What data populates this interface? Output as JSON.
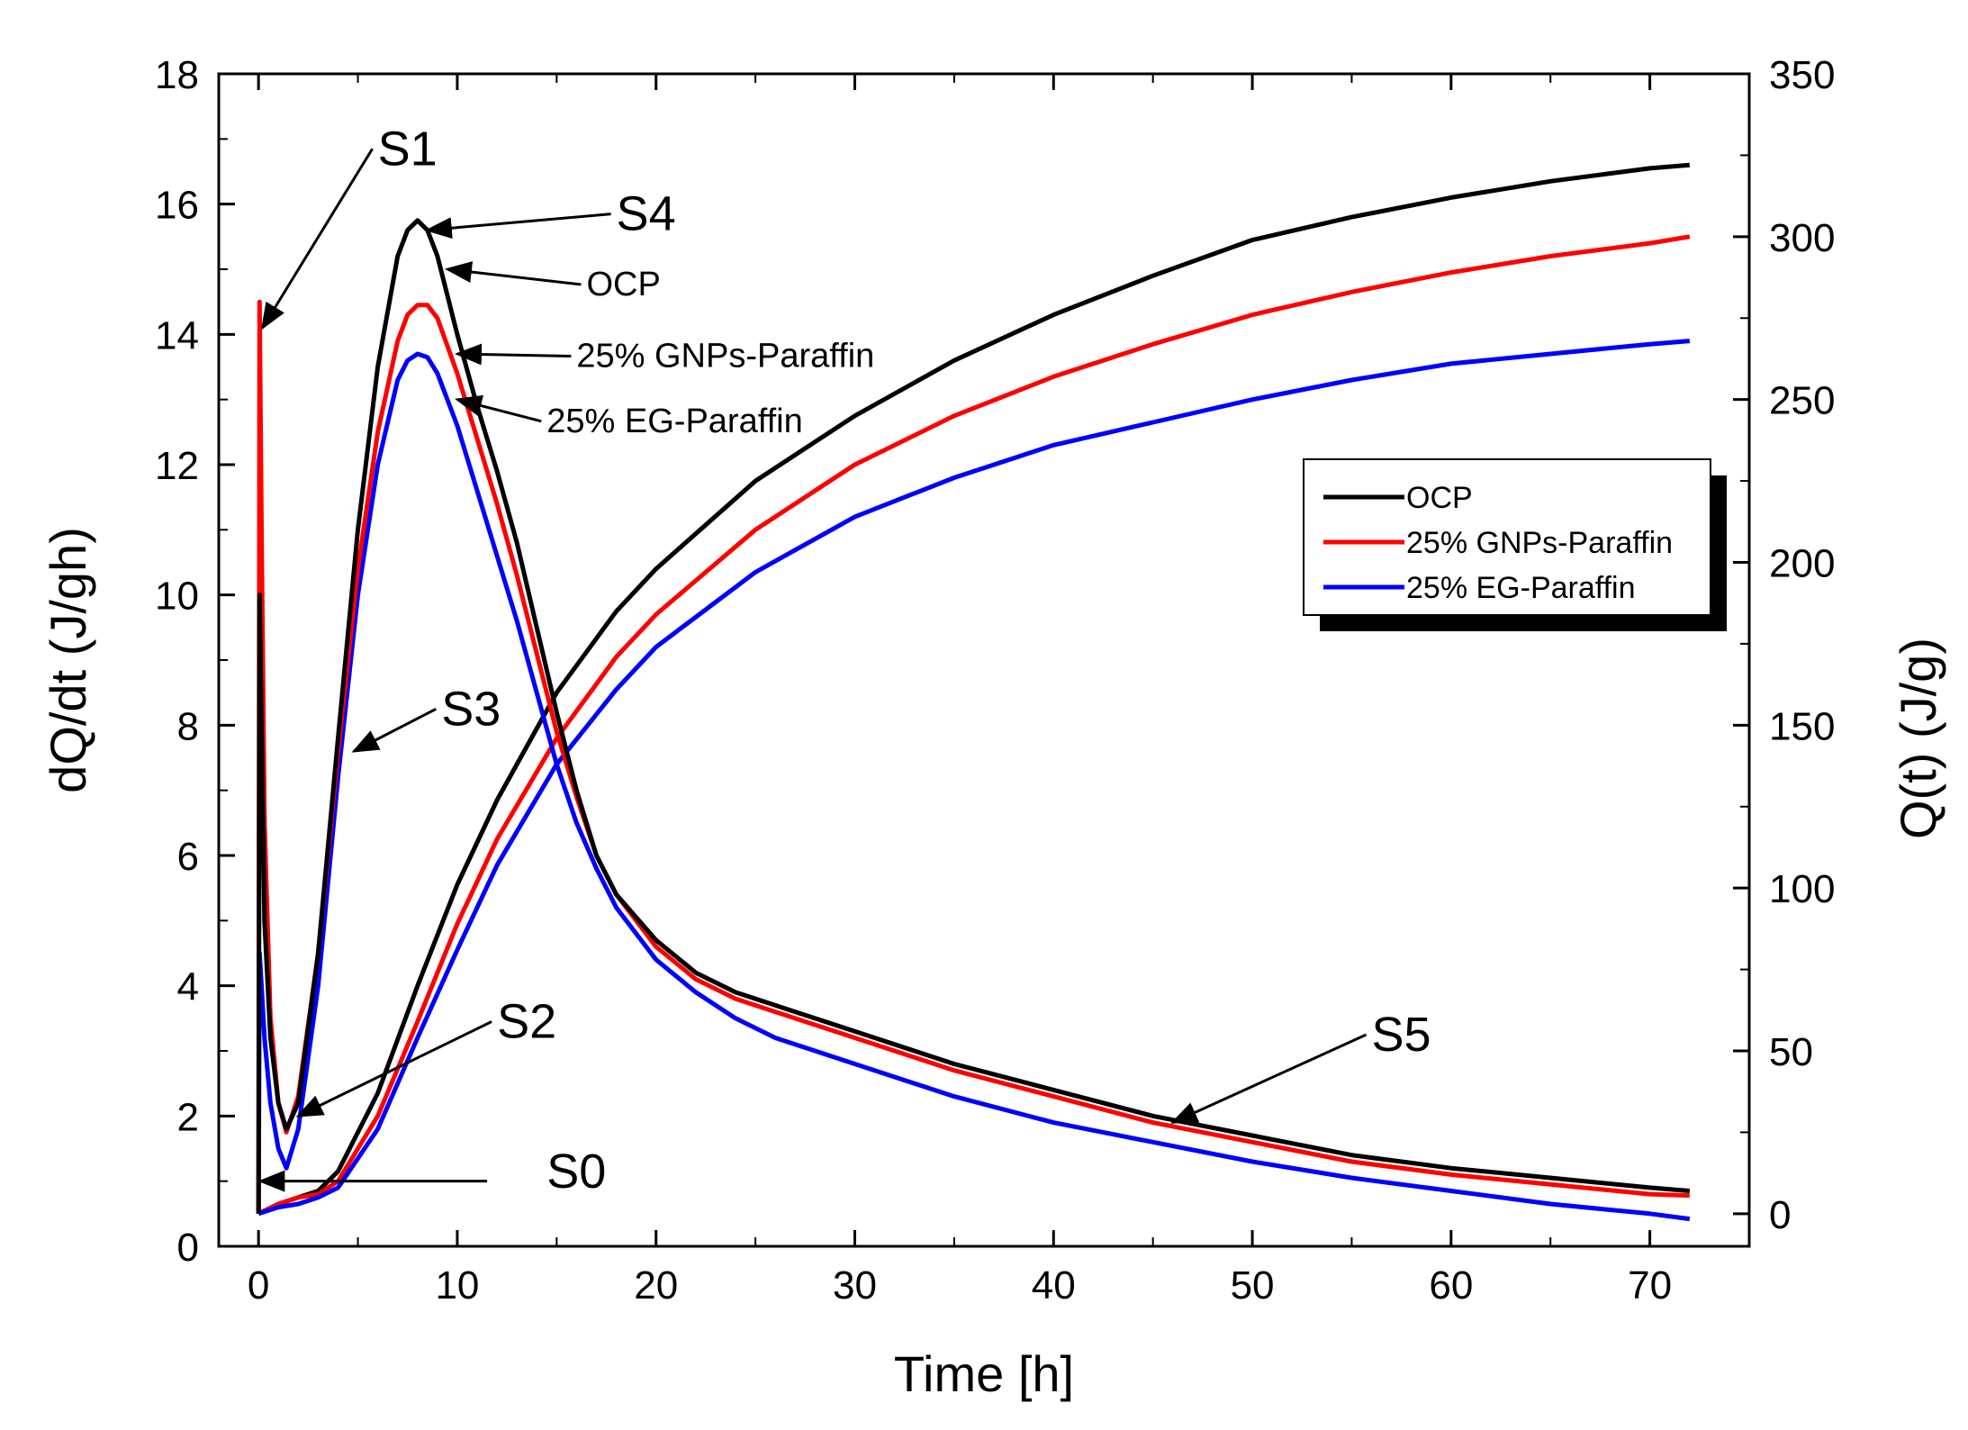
{
  "chart_data": {
    "type": "line",
    "xlabel": "Time [h]",
    "ylabel_left": "dQ/dt (J/gh)",
    "ylabel_right": "Q(t) (J/g)",
    "xlim": [
      -2,
      75
    ],
    "ylim_left": [
      0,
      18
    ],
    "ylim_right": [
      -10,
      350
    ],
    "x_ticks": [
      0,
      10,
      20,
      30,
      40,
      50,
      60,
      70
    ],
    "y_left_ticks": [
      0,
      2,
      4,
      6,
      8,
      10,
      12,
      14,
      16,
      18
    ],
    "y_right_ticks": [
      0,
      50,
      100,
      150,
      200,
      250,
      300,
      350
    ],
    "grid": false,
    "legend_position": "center-right",
    "legend": [
      "OCP",
      "25% GNPs-Paraffin",
      "25% EG-Paraffin"
    ],
    "colors": {
      "OCP": "#000000",
      "GNPs": "#ff0000",
      "EG": "#0000ff"
    },
    "series_rate": [
      {
        "name": "OCP",
        "axis": "left",
        "x": [
          0,
          0.05,
          0.15,
          0.3,
          0.6,
          1.0,
          1.4,
          2,
          3,
          4,
          5,
          6,
          7,
          7.5,
          8,
          8.5,
          9,
          10,
          11,
          12,
          13,
          14,
          15,
          16,
          17,
          18,
          20,
          22,
          24,
          26,
          30,
          35,
          40,
          45,
          50,
          55,
          60,
          65,
          70,
          72
        ],
        "y": [
          0.5,
          10,
          8,
          5,
          3.2,
          2.2,
          1.8,
          2.2,
          4.5,
          7.8,
          11.0,
          13.5,
          15.2,
          15.6,
          15.75,
          15.6,
          15.2,
          14.0,
          12.9,
          11.9,
          10.8,
          9.5,
          8.2,
          7.0,
          6.0,
          5.4,
          4.7,
          4.2,
          3.9,
          3.7,
          3.3,
          2.8,
          2.4,
          2.0,
          1.7,
          1.4,
          1.2,
          1.05,
          0.9,
          0.85
        ]
      },
      {
        "name": "25% GNPs-Paraffin",
        "axis": "left",
        "x": [
          0,
          0.05,
          0.15,
          0.3,
          0.6,
          1.0,
          1.4,
          2,
          3,
          4,
          5,
          6,
          7,
          7.5,
          8,
          8.5,
          9,
          10,
          11,
          12,
          13,
          14,
          15,
          16,
          17,
          18,
          20,
          22,
          24,
          26,
          30,
          35,
          40,
          45,
          50,
          55,
          60,
          65,
          70,
          72
        ],
        "y": [
          0.5,
          14.5,
          11,
          6.5,
          3.5,
          2.2,
          1.75,
          2.3,
          4.5,
          7.6,
          10.4,
          12.5,
          13.9,
          14.3,
          14.45,
          14.45,
          14.25,
          13.4,
          12.4,
          11.4,
          10.3,
          9.1,
          7.9,
          6.9,
          6.0,
          5.4,
          4.6,
          4.1,
          3.8,
          3.6,
          3.2,
          2.7,
          2.3,
          1.9,
          1.6,
          1.3,
          1.1,
          0.95,
          0.8,
          0.78
        ]
      },
      {
        "name": "25% EG-Paraffin",
        "axis": "left",
        "x": [
          0,
          0.05,
          0.15,
          0.3,
          0.6,
          1.0,
          1.4,
          2,
          3,
          4,
          5,
          6,
          7,
          7.5,
          8,
          8.5,
          9,
          10,
          11,
          12,
          13,
          14,
          15,
          16,
          17,
          18,
          20,
          22,
          24,
          26,
          30,
          35,
          40,
          45,
          50,
          55,
          60,
          65,
          70,
          72
        ],
        "y": [
          0.5,
          4.5,
          4.0,
          3.2,
          2.2,
          1.5,
          1.2,
          1.8,
          4.0,
          7.2,
          10.0,
          12.0,
          13.3,
          13.6,
          13.7,
          13.65,
          13.4,
          12.6,
          11.6,
          10.6,
          9.6,
          8.5,
          7.4,
          6.5,
          5.8,
          5.2,
          4.4,
          3.9,
          3.5,
          3.2,
          2.8,
          2.3,
          1.9,
          1.6,
          1.3,
          1.05,
          0.85,
          0.65,
          0.5,
          0.42
        ]
      }
    ],
    "series_cumulative": [
      {
        "name": "OCP",
        "axis": "right",
        "x": [
          0,
          1,
          2,
          3,
          4,
          6,
          8,
          10,
          12,
          15,
          18,
          20,
          25,
          30,
          35,
          40,
          45,
          50,
          55,
          60,
          65,
          70,
          72
        ],
        "y": [
          0,
          3,
          5,
          7,
          13,
          37,
          70,
          101,
          127,
          160,
          185,
          198,
          225,
          245,
          262,
          276,
          288,
          299,
          306,
          312,
          317,
          321,
          322
        ]
      },
      {
        "name": "25% GNPs-Paraffin",
        "axis": "right",
        "x": [
          0,
          1,
          2,
          3,
          4,
          6,
          8,
          10,
          12,
          15,
          18,
          20,
          25,
          30,
          35,
          40,
          45,
          50,
          55,
          60,
          65,
          70,
          72
        ],
        "y": [
          0,
          3,
          5,
          6,
          10,
          30,
          59,
          89,
          115,
          146,
          171,
          184,
          210,
          230,
          245,
          257,
          267,
          276,
          283,
          289,
          294,
          298,
          300
        ]
      },
      {
        "name": "25% EG-Paraffin",
        "axis": "right",
        "x": [
          0,
          1,
          2,
          3,
          4,
          6,
          8,
          10,
          12,
          15,
          18,
          20,
          25,
          30,
          35,
          40,
          45,
          50,
          55,
          60,
          65,
          70,
          72
        ],
        "y": [
          0,
          2,
          3,
          5,
          8,
          26,
          54,
          81,
          107,
          138,
          161,
          174,
          197,
          214,
          226,
          236,
          243,
          250,
          256,
          261,
          264,
          267,
          268
        ]
      }
    ],
    "annotations": [
      {
        "text": "S1",
        "x": 6,
        "y": 16.6,
        "arrow_to": [
          0.2,
          14.1
        ]
      },
      {
        "text": "S4",
        "x": 18,
        "y": 15.6,
        "arrow_to": [
          8.5,
          15.6
        ]
      },
      {
        "text": "OCP",
        "x": 16.5,
        "y": 14.6,
        "arrow_to": [
          9.5,
          15.0
        ],
        "small": true
      },
      {
        "text": "25% GNPs-Paraffin",
        "x": 16,
        "y": 13.5,
        "arrow_to": [
          10,
          13.7
        ],
        "small": true
      },
      {
        "text": "25% EG-Paraffin",
        "x": 14.5,
        "y": 12.5,
        "arrow_to": [
          10,
          13.0
        ],
        "small": true
      },
      {
        "text": "S3",
        "x": 9.2,
        "y": 8.0,
        "arrow_to": [
          4.8,
          7.6
        ]
      },
      {
        "text": "S2",
        "x": 12,
        "y": 3.2,
        "arrow_to": [
          2.0,
          2.0
        ]
      },
      {
        "text": "S0",
        "x": 14.5,
        "y": 0.9,
        "arrow_to": [
          0.1,
          1.0
        ],
        "arrow_from": [
          11.5,
          1.0
        ]
      },
      {
        "text": "S5",
        "x": 56,
        "y": 3.0,
        "arrow_to": [
          46,
          1.9
        ]
      }
    ]
  }
}
